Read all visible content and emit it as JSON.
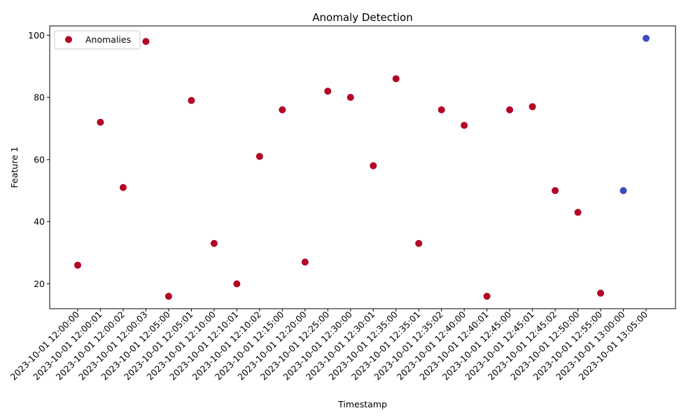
{
  "chart_data": {
    "type": "scatter",
    "title": "Anomaly Detection",
    "xlabel": "Timestamp",
    "ylabel": "Feature 1",
    "ylim": [
      12,
      103
    ],
    "yticks": [
      20,
      40,
      60,
      80,
      100
    ],
    "grid": false,
    "legend": {
      "placement": "top-left",
      "entries": [
        {
          "label": "Anomalies",
          "color": "#b40426"
        }
      ]
    },
    "colors": {
      "anomaly": "#b40426",
      "normal": "#3b4cc0"
    },
    "x": [
      "2023-10-01 12:00:00",
      "2023-10-01 12:00:01",
      "2023-10-01 12:00:02",
      "2023-10-01 12:00:03",
      "2023-10-01 12:05:00",
      "2023-10-01 12:05:01",
      "2023-10-01 12:10:00",
      "2023-10-01 12:10:01",
      "2023-10-01 12:10:02",
      "2023-10-01 12:15:00",
      "2023-10-01 12:20:00",
      "2023-10-01 12:25:00",
      "2023-10-01 12:30:00",
      "2023-10-01 12:30:01",
      "2023-10-01 12:35:00",
      "2023-10-01 12:35:01",
      "2023-10-01 12:35:02",
      "2023-10-01 12:40:00",
      "2023-10-01 12:40:01",
      "2023-10-01 12:45:00",
      "2023-10-01 12:45:01",
      "2023-10-01 12:45:02",
      "2023-10-01 12:50:00",
      "2023-10-01 12:55:00",
      "2023-10-01 13:00:00",
      "2023-10-01 13:05:00"
    ],
    "y": [
      26,
      72,
      51,
      98,
      16,
      79,
      33,
      20,
      61,
      76,
      27,
      82,
      80,
      58,
      86,
      33,
      76,
      71,
      16,
      76,
      77,
      50,
      43,
      17,
      50,
      99
    ],
    "is_anomaly": [
      true,
      true,
      true,
      true,
      true,
      true,
      true,
      true,
      true,
      true,
      true,
      true,
      true,
      true,
      true,
      true,
      true,
      true,
      true,
      true,
      true,
      true,
      true,
      true,
      false,
      false
    ]
  }
}
